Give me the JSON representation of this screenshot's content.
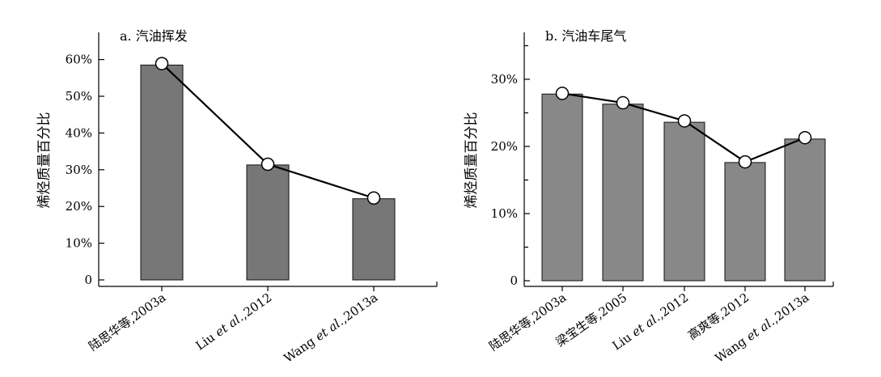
{
  "chart_data": [
    {
      "type": "bar",
      "title": "a. 汽油挥发",
      "ylabel": "烯烃质量百分比",
      "xlabel": "",
      "categories": [
        [
          "陆思华等,2003a"
        ],
        [
          "Liu ",
          "et al",
          ".,2012"
        ],
        [
          "Wang ",
          "et al",
          ".,2013a"
        ]
      ],
      "values": [
        0.585,
        0.313,
        0.221
      ],
      "line_values": [
        0.589,
        0.315,
        0.223
      ],
      "ylim": [
        0,
        0.65
      ],
      "yticks": [
        0,
        0.1,
        0.2,
        0.3,
        0.4,
        0.5,
        0.6
      ],
      "ytick_labels": [
        "0",
        "10%",
        "20%",
        "30%",
        "40%",
        "50%",
        "60%"
      ],
      "bar_color": "#777777",
      "grid": false
    },
    {
      "type": "bar",
      "title": "b. 汽油车尾气",
      "ylabel": "烯烃质量百分比",
      "xlabel": "",
      "categories": [
        [
          "陆思华等,2003a"
        ],
        [
          "梁宝生等,2005"
        ],
        [
          "Liu ",
          "et al",
          ".,2012"
        ],
        [
          "高爽等,2012"
        ],
        [
          "Wang ",
          "et al",
          ".,2013a"
        ]
      ],
      "values": [
        0.278,
        0.263,
        0.236,
        0.176,
        0.211
      ],
      "line_values": [
        0.279,
        0.265,
        0.238,
        0.177,
        0.213
      ],
      "ylim": [
        0,
        0.35
      ],
      "yticks": [
        0,
        0.1,
        0.2,
        0.3
      ],
      "ytick_labels": [
        "0",
        "10%",
        "20%",
        "30%"
      ],
      "minor_yticks": [
        0.05,
        0.15,
        0.25,
        0.35
      ],
      "bar_color": "#888888",
      "grid": false
    }
  ]
}
